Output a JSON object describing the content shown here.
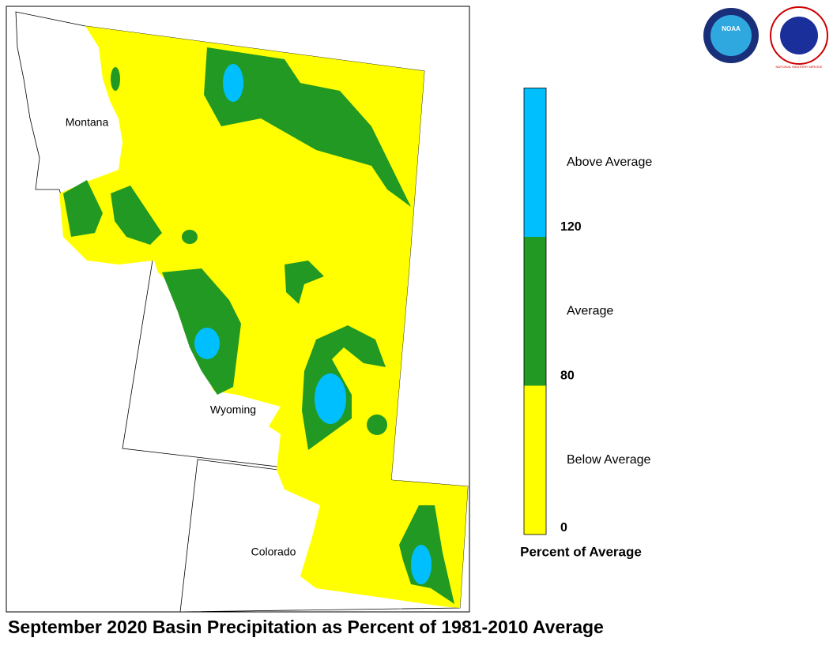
{
  "title": "September 2020 Basin Precipitation as Percent of 1981-2010 Average",
  "logos": {
    "noaa": "NOAA",
    "nws": "NATIONAL WEATHER SERVICE"
  },
  "map": {
    "states": [
      {
        "label": "Montana"
      },
      {
        "label": "Wyoming"
      },
      {
        "label": "Colorado"
      }
    ]
  },
  "legend": {
    "title": "Percent of Average",
    "classes": [
      {
        "label": "Below Average",
        "color": "#ffff00"
      },
      {
        "label": "Average",
        "color": "#229922"
      },
      {
        "label": "Above Average",
        "color": "#00bfff"
      }
    ],
    "breaks": [
      0,
      80,
      120
    ]
  }
}
